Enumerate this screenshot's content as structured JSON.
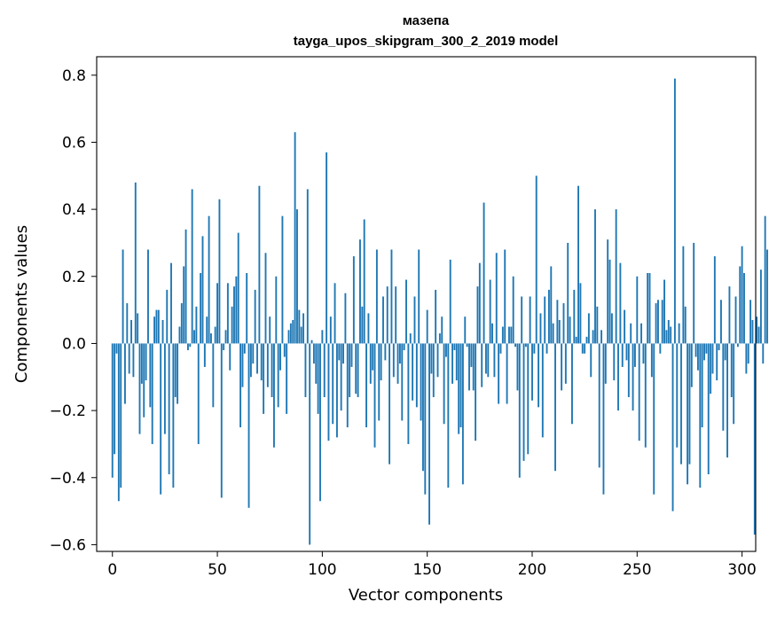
{
  "chart_data": {
    "type": "bar",
    "title": "мазепа",
    "subtitle": "tayga_upos_skipgram_300_2_2019 model",
    "xlabel": "Vector components",
    "ylabel": "Components values",
    "xlim": [
      -7.5,
      306.5
    ],
    "ylim": [
      -0.62,
      0.855
    ],
    "xticks": [
      0,
      50,
      100,
      150,
      200,
      250,
      300
    ],
    "yticks": [
      -0.6,
      -0.4,
      -0.2,
      0.0,
      0.2,
      0.4,
      0.6,
      0.8
    ],
    "ytick_labels": [
      "−0.6",
      "−0.4",
      "−0.2",
      "0.0",
      "0.2",
      "0.4",
      "0.6",
      "0.8"
    ],
    "xtick_labels": [
      "0",
      "50",
      "100",
      "150",
      "200",
      "250",
      "300"
    ],
    "bar_color": "#1f77b4",
    "values": [
      -0.4,
      -0.33,
      -0.03,
      -0.47,
      -0.43,
      0.28,
      -0.18,
      0.12,
      -0.09,
      0.07,
      -0.1,
      0.48,
      0.09,
      -0.27,
      -0.12,
      -0.22,
      -0.11,
      0.28,
      -0.19,
      -0.3,
      0.08,
      0.1,
      0.1,
      -0.45,
      0.07,
      -0.27,
      0.16,
      -0.39,
      0.24,
      -0.43,
      -0.16,
      -0.18,
      0.05,
      0.12,
      0.23,
      0.34,
      -0.02,
      -0.01,
      0.46,
      0.04,
      0.11,
      -0.3,
      0.21,
      0.32,
      -0.07,
      0.08,
      0.38,
      0.03,
      -0.19,
      0.05,
      0.18,
      0.43,
      -0.46,
      -0.02,
      0.04,
      0.18,
      -0.08,
      0.11,
      0.17,
      0.2,
      0.33,
      -0.25,
      -0.13,
      -0.03,
      0.21,
      -0.49,
      -0.1,
      -0.06,
      0.16,
      -0.09,
      0.47,
      -0.11,
      -0.21,
      0.27,
      -0.13,
      0.08,
      -0.16,
      -0.31,
      0.2,
      -0.19,
      -0.08,
      0.38,
      -0.04,
      -0.21,
      0.04,
      0.06,
      0.07,
      0.63,
      0.4,
      0.1,
      0.05,
      0.09,
      -0.16,
      0.46,
      -0.6,
      0.01,
      -0.06,
      -0.12,
      -0.21,
      -0.47,
      0.04,
      -0.16,
      0.57,
      -0.29,
      0.08,
      -0.24,
      0.18,
      -0.28,
      -0.05,
      -0.2,
      -0.06,
      0.15,
      -0.25,
      -0.16,
      -0.07,
      0.26,
      -0.15,
      -0.16,
      0.31,
      0.11,
      0.37,
      -0.25,
      0.09,
      -0.12,
      -0.08,
      -0.31,
      0.28,
      -0.23,
      -0.11,
      0.14,
      -0.05,
      0.17,
      -0.36,
      0.28,
      -0.1,
      0.17,
      -0.12,
      -0.06,
      -0.23,
      -0.02,
      0.19,
      -0.3,
      0.03,
      -0.17,
      0.14,
      -0.19,
      0.28,
      -0.23,
      -0.38,
      -0.45,
      0.1,
      -0.54,
      -0.09,
      -0.16,
      0.16,
      -0.1,
      0.03,
      0.08,
      -0.24,
      -0.04,
      -0.43,
      0.25,
      -0.12,
      -0.02,
      -0.11,
      -0.27,
      -0.25,
      -0.42,
      0.08,
      -0.01,
      -0.14,
      -0.07,
      -0.14,
      -0.29,
      0.17,
      0.24,
      -0.13,
      0.42,
      -0.09,
      -0.1,
      0.19,
      0.06,
      -0.1,
      0.27,
      -0.18,
      -0.03,
      0.05,
      0.28,
      -0.18,
      0.05,
      0.05,
      0.2,
      -0.01,
      -0.14,
      -0.4,
      0.14,
      -0.35,
      -0.01,
      -0.33,
      0.14,
      -0.17,
      -0.03,
      0.5,
      -0.19,
      0.09,
      -0.28,
      0.14,
      -0.03,
      0.16,
      0.23,
      0.06,
      -0.38,
      0.13,
      0.07,
      -0.14,
      0.12,
      -0.12,
      0.3,
      0.08,
      -0.24,
      0.16,
      0.02,
      0.47,
      0.18,
      -0.03,
      -0.03,
      0.02,
      0.09,
      -0.1,
      0.04,
      0.4,
      0.11,
      -0.37,
      0.04,
      -0.45,
      -0.12,
      0.31,
      0.25,
      0.09,
      -0.11,
      0.4,
      -0.2,
      0.24,
      -0.07,
      0.1,
      -0.05,
      -0.16,
      0.06,
      -0.2,
      -0.07,
      0.2,
      -0.29,
      0.06,
      -0.06,
      -0.31,
      0.21,
      0.21,
      -0.1,
      -0.45,
      0.12,
      0.13,
      -0.03,
      0.13,
      0.19,
      0.04,
      0.07,
      0.05,
      -0.5,
      0.79,
      -0.31,
      0.06,
      -0.36,
      0.29,
      0.11,
      -0.42,
      -0.36,
      -0.13,
      0.3,
      -0.04,
      -0.08,
      -0.43,
      -0.25,
      -0.05,
      -0.03,
      -0.39,
      -0.15,
      -0.09,
      0.26,
      -0.11,
      -0.02,
      0.13,
      -0.26,
      -0.05,
      -0.34,
      0.17,
      -0.16,
      -0.24,
      0.14,
      -0.01,
      0.23,
      0.29,
      0.21,
      -0.09,
      -0.06,
      0.13,
      0.07,
      -0.57,
      0.08,
      0.05,
      0.22,
      -0.06,
      0.38,
      0.28
    ]
  }
}
